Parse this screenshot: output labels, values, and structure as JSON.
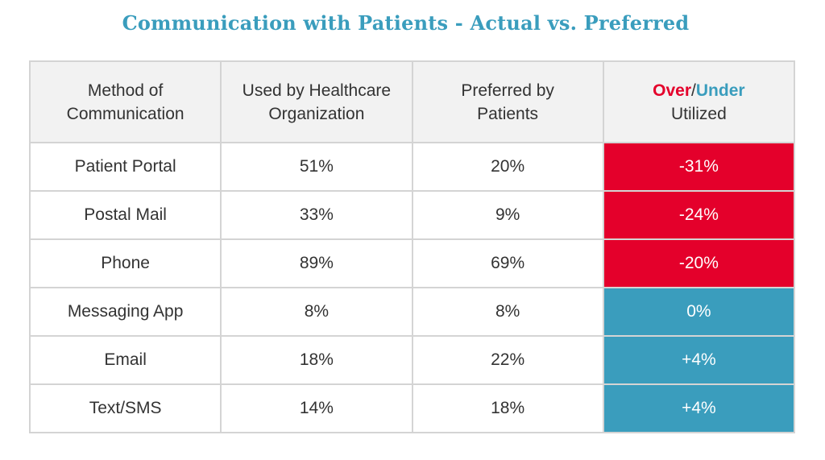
{
  "chart_data": {
    "type": "table",
    "title": "Communication with Patients - Actual vs. Preferred",
    "columns": {
      "method": [
        "Method of",
        "Communication"
      ],
      "used": [
        "Used by Healthcare",
        "Organization"
      ],
      "preferred": [
        "Preferred by",
        "Patients"
      ],
      "variance": {
        "over": "Over",
        "slash": "/",
        "under": "Under",
        "line2": "Utilized"
      }
    },
    "rows": [
      {
        "method": "Patient Portal",
        "used": "51%",
        "preferred": "20%",
        "variance": "-31%"
      },
      {
        "method": "Postal Mail",
        "used": "33%",
        "preferred": "9%",
        "variance": "-24%"
      },
      {
        "method": "Phone",
        "used": "89%",
        "preferred": "69%",
        "variance": "-20%"
      },
      {
        "method": "Messaging App",
        "used": "8%",
        "preferred": "8%",
        "variance": "0%"
      },
      {
        "method": "Email",
        "used": "18%",
        "preferred": "22%",
        "variance": "+4%"
      },
      {
        "method": "Text/SMS",
        "used": "14%",
        "preferred": "18%",
        "variance": "+4%"
      }
    ]
  },
  "colors": {
    "over_utilized": "#e4002b",
    "under_utilized": "#3a9dbd",
    "header_background": "#f2f2f2"
  }
}
